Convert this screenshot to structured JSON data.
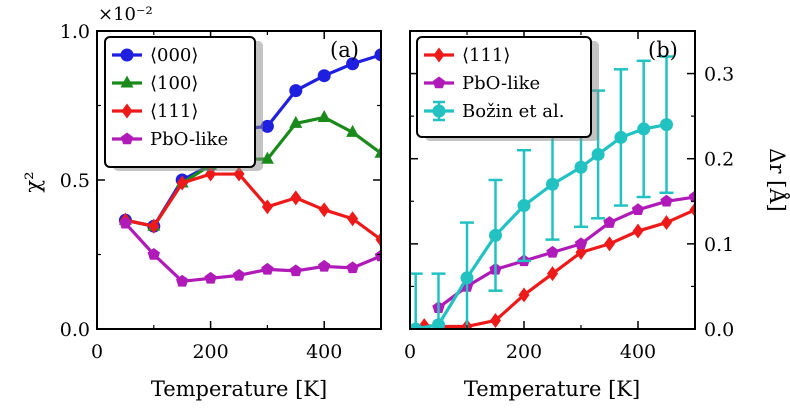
{
  "chart_data": [
    {
      "type": "line",
      "panel_label": "(a)",
      "title": "",
      "xlabel": "Temperature [K]",
      "ylabel": "χ²",
      "scale_label": "×10⁻²",
      "xlim": [
        0,
        500
      ],
      "ylim": [
        0,
        1.0
      ],
      "xticks": [
        "0",
        "200",
        "400"
      ],
      "xtick_values": [
        0,
        200,
        400
      ],
      "yticks": [
        "0.0",
        "0.5",
        "1.0"
      ],
      "ytick_values": [
        0,
        0.5,
        1.0
      ],
      "legend_position": "top-left",
      "series": [
        {
          "name": "⟨000⟩",
          "color": "#1f1fe0",
          "marker": "circle",
          "x": [
            50,
            100,
            150,
            200,
            250,
            300,
            350,
            400,
            450,
            500
          ],
          "y": [
            0.365,
            0.345,
            0.5,
            0.55,
            0.67,
            0.68,
            0.8,
            0.85,
            0.89,
            0.92
          ]
        },
        {
          "name": "⟨100⟩",
          "color": "#1a8a1a",
          "marker": "triangle",
          "x": [
            50,
            100,
            150,
            200,
            250,
            300,
            350,
            400,
            450,
            500
          ],
          "y": [
            0.365,
            0.345,
            0.49,
            0.55,
            0.57,
            0.57,
            0.69,
            0.71,
            0.66,
            0.59
          ]
        },
        {
          "name": "⟨111⟩",
          "color": "#ee1a1a",
          "marker": "diamond",
          "x": [
            50,
            100,
            150,
            200,
            250,
            300,
            350,
            400,
            450,
            500
          ],
          "y": [
            0.365,
            0.345,
            0.49,
            0.52,
            0.52,
            0.41,
            0.44,
            0.4,
            0.37,
            0.3
          ]
        },
        {
          "name": "PbO-like",
          "color": "#b01ab8",
          "marker": "pentagon",
          "x": [
            50,
            100,
            150,
            200,
            250,
            300,
            350,
            400,
            450,
            500
          ],
          "y": [
            0.355,
            0.25,
            0.16,
            0.17,
            0.18,
            0.2,
            0.195,
            0.21,
            0.205,
            0.245
          ]
        }
      ]
    },
    {
      "type": "line",
      "panel_label": "(b)",
      "title": "",
      "xlabel": "Temperature [K]",
      "ylabel": "Δr [Å]",
      "xlim": [
        0,
        500
      ],
      "ylim": [
        0,
        0.35
      ],
      "xticks": [
        "0",
        "200",
        "400"
      ],
      "xtick_values": [
        0,
        200,
        400
      ],
      "yticks": [
        "0.0",
        "0.1",
        "0.2",
        "0.3"
      ],
      "ytick_values": [
        0,
        0.1,
        0.2,
        0.3
      ],
      "legend_position": "top-left",
      "series": [
        {
          "name": "⟨111⟩",
          "color": "#ee1a1a",
          "marker": "diamond",
          "x": [
            25,
            50,
            100,
            150,
            200,
            250,
            300,
            350,
            400,
            450,
            500
          ],
          "y": [
            0.004,
            0.003,
            0.003,
            0.01,
            0.04,
            0.065,
            0.09,
            0.1,
            0.115,
            0.125,
            0.14
          ]
        },
        {
          "name": "PbO-like",
          "color": "#b01ab8",
          "marker": "pentagon",
          "x": [
            50,
            100,
            150,
            200,
            250,
            300,
            350,
            400,
            450,
            500
          ],
          "y": [
            0.025,
            0.05,
            0.07,
            0.08,
            0.09,
            0.1,
            0.125,
            0.14,
            0.15,
            0.155
          ]
        },
        {
          "name": "Božin et al.",
          "color": "#22c2c2",
          "marker": "circle",
          "x": [
            10,
            50,
            100,
            150,
            200,
            250,
            300,
            330,
            370,
            410,
            450
          ],
          "y": [
            0.0,
            0.005,
            0.06,
            0.11,
            0.145,
            0.17,
            0.19,
            0.205,
            0.225,
            0.235,
            0.24
          ],
          "yerr": [
            0.065,
            0.06,
            0.065,
            0.065,
            0.065,
            0.065,
            0.07,
            0.075,
            0.08,
            0.08,
            0.08
          ]
        }
      ]
    }
  ]
}
